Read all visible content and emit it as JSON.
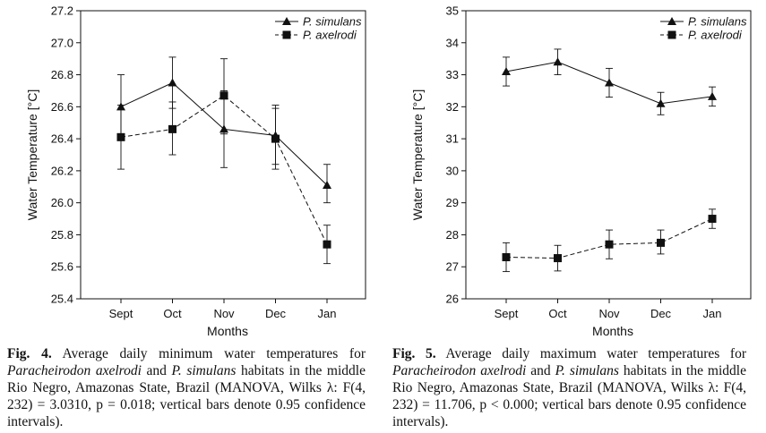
{
  "chart_data": [
    {
      "type": "line",
      "xlabel": "Months",
      "ylabel": "Water Temperature [°C]",
      "categories": [
        "Sept",
        "Oct",
        "Nov",
        "Dec",
        "Jan"
      ],
      "ylim": [
        25.4,
        27.2
      ],
      "yticks": [
        "25.4",
        "25.6",
        "25.8",
        "26.0",
        "26.2",
        "26.4",
        "26.6",
        "26.8",
        "27.0",
        "27.2"
      ],
      "legend_position": "top-right",
      "series": [
        {
          "name": "P. simulans",
          "marker": "triangle",
          "line": "solid",
          "values": [
            26.6,
            26.75,
            26.46,
            26.42,
            26.11
          ],
          "err_low": [
            26.41,
            26.59,
            26.22,
            26.24,
            26.0
          ],
          "err_high": [
            26.8,
            26.91,
            26.7,
            26.61,
            26.24
          ]
        },
        {
          "name": "P. axelrodi",
          "marker": "square",
          "line": "dashed",
          "values": [
            26.41,
            26.46,
            26.67,
            26.4,
            25.74
          ],
          "err_low": [
            26.21,
            26.3,
            26.43,
            26.21,
            25.62
          ],
          "err_high": [
            26.61,
            26.63,
            26.9,
            26.59,
            25.86
          ]
        }
      ],
      "caption": {
        "label": "Fig. 4.",
        "t1": " Average daily minimum water temperatures for ",
        "sp1": "Paracheirodon axelrodi",
        "t2": " and ",
        "sp2": "P. simulans",
        "t3": " habitats in the middle Rio Negro, Amazonas State, Brazil (MANOVA, Wilks λ: F(4, 232) = 3.0310, p = 0.018; vertical bars denote 0.95 confidence intervals)."
      }
    },
    {
      "type": "line",
      "xlabel": "Months",
      "ylabel": "Water Temperature [°C]",
      "categories": [
        "Sept",
        "Oct",
        "Nov",
        "Dec",
        "Jan"
      ],
      "ylim": [
        26,
        35
      ],
      "yticks": [
        "26",
        "27",
        "28",
        "29",
        "30",
        "31",
        "32",
        "33",
        "34",
        "35"
      ],
      "legend_position": "top-right",
      "series": [
        {
          "name": "P. simulans",
          "marker": "triangle",
          "line": "solid",
          "values": [
            33.1,
            33.4,
            32.75,
            32.1,
            32.32
          ],
          "err_low": [
            32.65,
            33.0,
            32.3,
            31.75,
            32.02
          ],
          "err_high": [
            33.55,
            33.8,
            33.2,
            32.45,
            32.62
          ]
        },
        {
          "name": "P. axelrodi",
          "marker": "square",
          "line": "dashed",
          "values": [
            27.3,
            27.27,
            27.7,
            27.75,
            28.5
          ],
          "err_low": [
            26.85,
            26.87,
            27.25,
            27.4,
            28.2
          ],
          "err_high": [
            27.75,
            27.67,
            28.15,
            28.15,
            28.8
          ]
        }
      ],
      "caption": {
        "label": "Fig. 5.",
        "t1": " Average daily maximum water temperatures for ",
        "sp1": "Paracheirodon axelrodi",
        "t2": " and ",
        "sp2": "P. simulans",
        "t3": " habitats in the middle Rio Negro, Amazonas State, Brazil (MANOVA, Wilks λ: F(4, 232) = 11.706, p < 0.000; vertical bars denote 0.95 confidence intervals)."
      }
    }
  ]
}
